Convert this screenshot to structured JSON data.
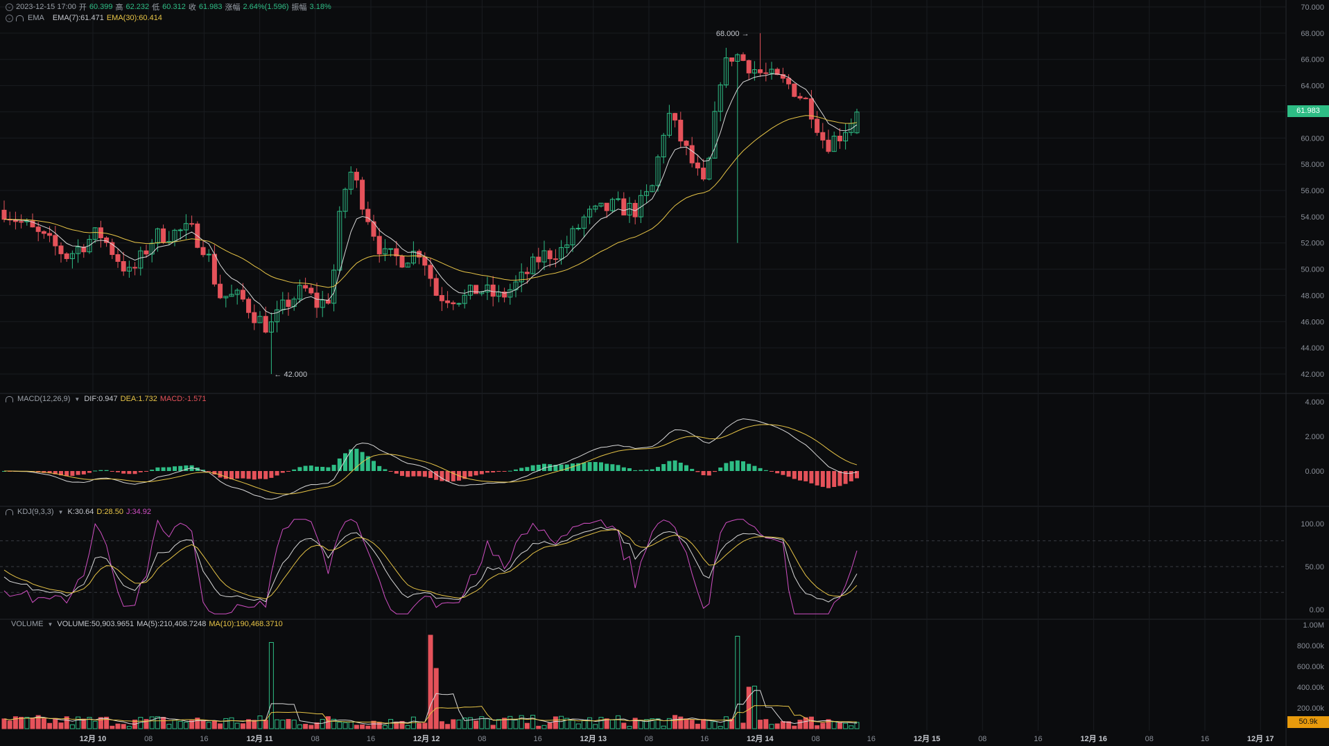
{
  "header": {
    "datetime": "2023-12-15 17:00",
    "open_label": "开",
    "open": "60.399",
    "high_label": "高",
    "high": "62.232",
    "low_label": "低",
    "low": "60.312",
    "close_label": "收",
    "close": "61.983",
    "change_label": "涨幅",
    "change": "2.64%(1.596)",
    "amplitude_label": "振幅",
    "amplitude": "3.18%",
    "ema_name": "EMA",
    "ema7": "EMA(7):61.471",
    "ema30": "EMA(30):60.414"
  },
  "macd": {
    "name": "MACD(12,26,9)",
    "dif": "DIF:0.947",
    "dea": "DEA:1.732",
    "macd": "MACD:-1.571"
  },
  "kdj": {
    "name": "KDJ(9,3,3)",
    "k": "K:30.64",
    "d": "D:28.50",
    "j": "J:34.92"
  },
  "volume": {
    "name": "VOLUME",
    "vol": "VOLUME:50,903.9651",
    "ma5": "MA(5):210,408.7248",
    "ma10": "MA(10):190,468.3710"
  },
  "price_axis": [
    "70.000",
    "68.000",
    "66.000",
    "64.000",
    "62.000",
    "60.000",
    "58.000",
    "56.000",
    "54.000",
    "52.000",
    "50.000",
    "48.000",
    "46.000",
    "44.000",
    "42.000"
  ],
  "macd_axis": [
    "4.000",
    "2.000",
    "0.000"
  ],
  "kdj_axis": [
    "100.00",
    "50.00",
    "0.00"
  ],
  "volume_axis": [
    "1.00M",
    "800.00k",
    "600.00k",
    "400.00k",
    "200.00k"
  ],
  "time_axis": [
    "12月 10",
    "08",
    "16",
    "12月 11",
    "08",
    "16",
    "12月 12",
    "08",
    "16",
    "12月 13",
    "08",
    "16",
    "12月 14",
    "08",
    "16",
    "12月 15",
    "08",
    "16",
    "12月 16",
    "08",
    "16",
    "12月 17"
  ],
  "last_price_tag": "61.983",
  "last_volume_tag": "50.9k",
  "max_marker": "68.000",
  "min_marker": "42.000",
  "colors": {
    "up": "#2ebd85",
    "down": "#e5525a",
    "ema7": "#d9d9d9",
    "ema30": "#e8c547",
    "j": "#d04fc3",
    "bg": "#0b0c0e",
    "grid": "#1a1c20"
  },
  "chart_data": {
    "type": "candlestick",
    "interval": "1h",
    "price_ylim": [
      41,
      70.5
    ],
    "candles_ohlc_approx": [
      [
        54.0,
        55.2,
        53.2,
        54.8
      ],
      [
        54.8,
        55.6,
        54.1,
        54.3
      ],
      [
        54.3,
        55.0,
        53.5,
        54.9
      ],
      [
        54.9,
        56.1,
        54.2,
        55.3
      ],
      [
        55.3,
        55.8,
        53.9,
        54.1
      ],
      [
        54.1,
        55.0,
        51.6,
        52.6
      ],
      [
        52.6,
        53.9,
        51.9,
        53.5
      ],
      [
        53.5,
        54.1,
        52.4,
        52.8
      ]
    ],
    "annotated_high": 68.0,
    "annotated_low": 42.0,
    "last_close": 61.983
  }
}
